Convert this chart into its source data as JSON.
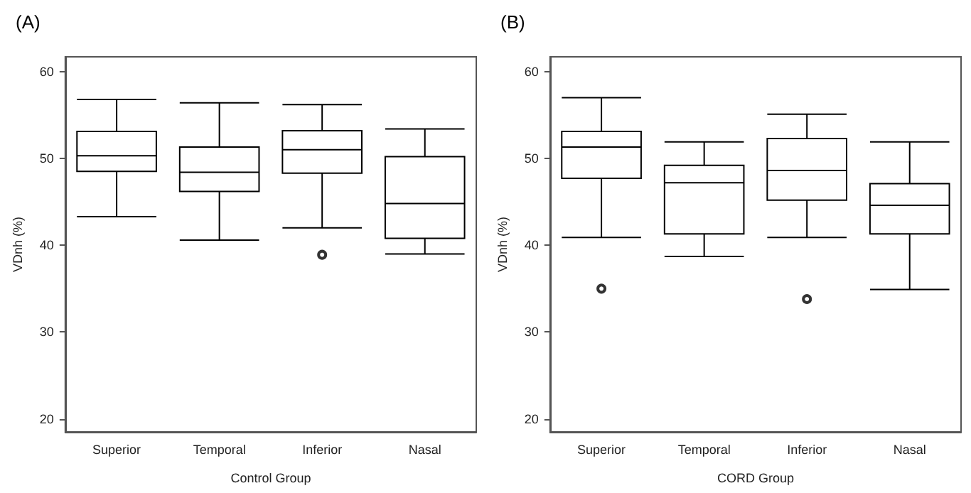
{
  "chart_data": [
    {
      "type": "box",
      "title": "(A)",
      "xlabel": "Control Group",
      "ylabel": "VDnh (%)",
      "categories": [
        "Superior",
        "Temporal",
        "Inferior",
        "Nasal"
      ],
      "ylim": [
        18.5,
        61.7
      ],
      "yticks": [
        20,
        30,
        40,
        50,
        60
      ],
      "grid": false,
      "legend": false,
      "color": "#000000",
      "boxes": [
        {
          "low": 43.3,
          "q1": 48.5,
          "median": 50.3,
          "q3": 53.1,
          "high": 56.8
        },
        {
          "low": 40.6,
          "q1": 46.2,
          "median": 48.4,
          "q3": 51.3,
          "high": 56.4
        },
        {
          "low": 42.0,
          "q1": 48.3,
          "median": 51.0,
          "q3": 53.2,
          "high": 56.2,
          "outliers": [
            38.9
          ]
        },
        {
          "low": 39.0,
          "q1": 40.8,
          "median": 44.8,
          "q3": 50.2,
          "high": 53.4
        }
      ]
    },
    {
      "type": "box",
      "title": "(B)",
      "xlabel": "CORD Group",
      "ylabel": "VDnh (%)",
      "categories": [
        "Superior",
        "Temporal",
        "Inferior",
        "Nasal"
      ],
      "ylim": [
        18.5,
        61.7
      ],
      "yticks": [
        20,
        30,
        40,
        50,
        60
      ],
      "grid": false,
      "legend": false,
      "color": "#000000",
      "boxes": [
        {
          "low": 40.9,
          "q1": 47.7,
          "median": 51.3,
          "q3": 53.1,
          "high": 57.0,
          "outliers": [
            35.0
          ]
        },
        {
          "low": 38.7,
          "q1": 41.3,
          "median": 47.2,
          "q3": 49.2,
          "high": 51.9
        },
        {
          "low": 40.9,
          "q1": 45.2,
          "median": 48.6,
          "q3": 52.3,
          "high": 55.1,
          "outliers": [
            33.8
          ]
        },
        {
          "low": 34.9,
          "q1": 41.3,
          "median": 44.6,
          "q3": 47.1,
          "high": 51.9
        }
      ]
    }
  ]
}
